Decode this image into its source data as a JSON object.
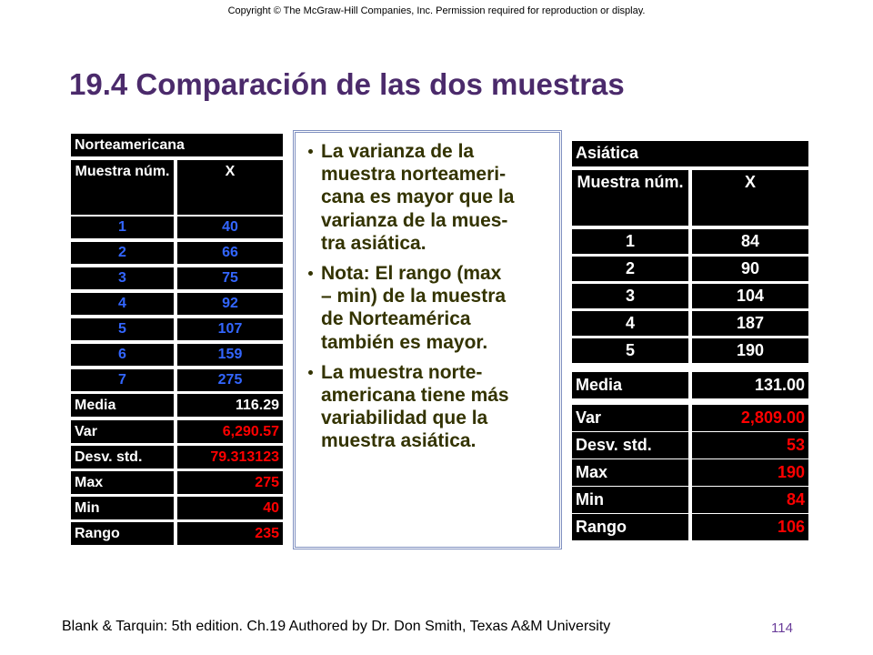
{
  "header": {
    "copyright": "Copyright © The McGraw-Hill Companies, Inc. Permission required for reproduction or display.",
    "title": "19.4 Comparación de las dos muestras"
  },
  "left_table": {
    "title": "Norteamericana",
    "columns": [
      "Muestra núm.",
      "X"
    ],
    "rows": [
      [
        "1",
        "40"
      ],
      [
        "2",
        "66"
      ],
      [
        "3",
        "75"
      ],
      [
        "4",
        "92"
      ],
      [
        "5",
        "107"
      ],
      [
        "6",
        "159"
      ],
      [
        "7",
        "275"
      ]
    ],
    "stats": [
      [
        "Media",
        "116.29"
      ],
      [
        "Var",
        "6,290.57"
      ],
      [
        "Desv. std.",
        "79.313123"
      ],
      [
        "Max",
        "275"
      ],
      [
        "Min",
        "40"
      ],
      [
        "Rango",
        "235"
      ]
    ]
  },
  "bullets": [
    "La varianza de la\nmuestra norteameri-\ncana es mayor que la\nvarianza de la mues-\ntra asiática.",
    "Nota: El rango (max\n– min) de la muestra\nde Norteamérica\ntambién es mayor.",
    "La muestra norte-\namericana tiene más\nvariabilidad que la\nmuestra asiática."
  ],
  "right_table": {
    "title": "Asiática",
    "columns": [
      "Muestra núm.",
      "X"
    ],
    "rows": [
      [
        "1",
        "84"
      ],
      [
        "2",
        "90"
      ],
      [
        "3",
        "104"
      ],
      [
        "4",
        "187"
      ],
      [
        "5",
        "190"
      ]
    ],
    "stats": [
      [
        "Media",
        "131.00"
      ],
      [
        "Var",
        "2,809.00"
      ],
      [
        "Desv. std.",
        "53"
      ],
      [
        "Max",
        "190"
      ],
      [
        "Min",
        "84"
      ],
      [
        "Rango",
        "106"
      ]
    ]
  },
  "footer": {
    "text": "Blank & Tarquin: 5th edition. Ch.19 Authored by Dr. Don Smith, Texas A&M University",
    "page": "114"
  }
}
